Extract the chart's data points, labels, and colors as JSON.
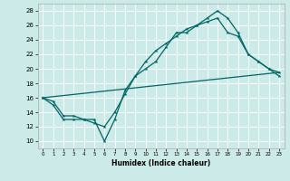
{
  "xlabel": "Humidex (Indice chaleur)",
  "xlim": [
    -0.5,
    23.5
  ],
  "ylim": [
    9,
    29
  ],
  "xticks": [
    0,
    1,
    2,
    3,
    4,
    5,
    6,
    7,
    8,
    9,
    10,
    11,
    12,
    13,
    14,
    15,
    16,
    17,
    18,
    19,
    20,
    21,
    22,
    23
  ],
  "yticks": [
    10,
    12,
    14,
    16,
    18,
    20,
    22,
    24,
    26,
    28
  ],
  "bg_color": "#cceae7",
  "line_color": "#006666",
  "line1_x": [
    0,
    1,
    2,
    3,
    4,
    5,
    6,
    7,
    8,
    9,
    10,
    11,
    12,
    13,
    14,
    15,
    16,
    17,
    18,
    19,
    20,
    21,
    22,
    23
  ],
  "line1_y": [
    16,
    15,
    13,
    13,
    13,
    13,
    10,
    13,
    17,
    19,
    20,
    21,
    23,
    25,
    25,
    26,
    27,
    28,
    27,
    25,
    22,
    21,
    20,
    19
  ],
  "line2_x": [
    0,
    1,
    2,
    3,
    4,
    5,
    6,
    7,
    8,
    9,
    10,
    11,
    12,
    13,
    14,
    15,
    16,
    17,
    18,
    19,
    20,
    21,
    22,
    23
  ],
  "line2_y": [
    16,
    15.5,
    13.5,
    13.5,
    13,
    12.5,
    12,
    14,
    16.5,
    19,
    21,
    22.5,
    23.5,
    24.5,
    25.5,
    26,
    26.5,
    27,
    25,
    24.5,
    22,
    21,
    20,
    19.5
  ],
  "line3_x": [
    0,
    23
  ],
  "line3_y": [
    16,
    19.5
  ]
}
